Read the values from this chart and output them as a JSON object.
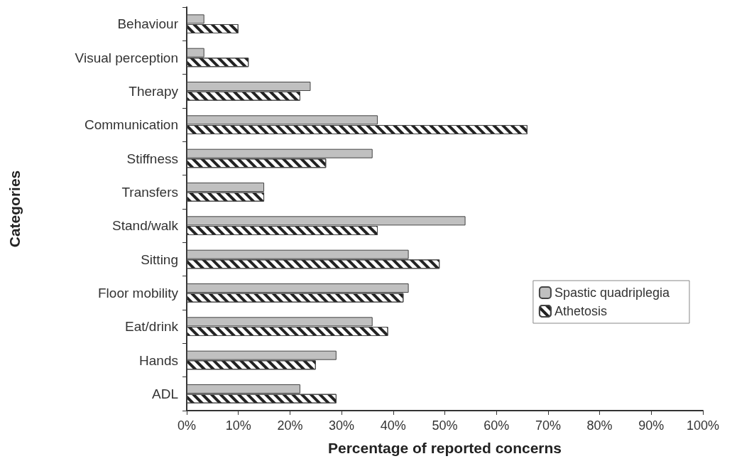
{
  "chart_data": {
    "type": "bar",
    "orientation": "horizontal",
    "xlabel": "Percentage of reported concerns",
    "ylabel": "Categories",
    "categories": [
      "Behaviour",
      "Visual perception",
      "Therapy",
      "Communication",
      "Stiffness",
      "Transfers",
      "Stand/walk",
      "Sitting",
      "Floor mobility",
      "Eat/drink",
      "Hands",
      "ADL"
    ],
    "series": [
      {
        "name": "Spastic quadriplegia",
        "color": "#c0c0c0",
        "values": [
          3.4,
          3.4,
          24,
          37,
          36,
          15,
          54,
          43,
          43,
          36,
          29,
          22
        ]
      },
      {
        "name": "Athetosis",
        "color": "#ffffff",
        "values": [
          10,
          12,
          22,
          66,
          27,
          15,
          37,
          49,
          42,
          39,
          25,
          29
        ]
      }
    ],
    "xlim": [
      0,
      100
    ],
    "xticks": [
      {
        "value": 0,
        "label": "0%"
      },
      {
        "value": 10,
        "label": "10%"
      },
      {
        "value": 20,
        "label": "20%"
      },
      {
        "value": 30,
        "label": "30%"
      },
      {
        "value": 40,
        "label": "40%"
      },
      {
        "value": 50,
        "label": "50%"
      },
      {
        "value": 60,
        "label": "60%"
      },
      {
        "value": 70,
        "label": "70%"
      },
      {
        "value": 80,
        "label": "80%"
      },
      {
        "value": 90,
        "label": "90%"
      },
      {
        "value": 100,
        "label": "100%"
      }
    ],
    "grid": false,
    "legend": "right"
  }
}
